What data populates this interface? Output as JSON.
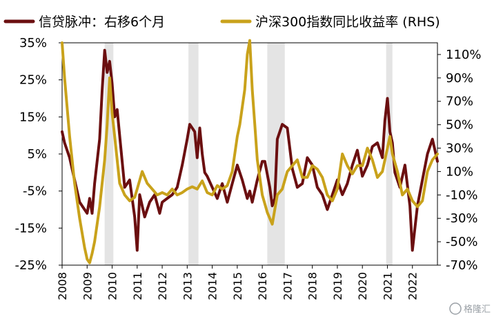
{
  "chart_data": {
    "type": "line",
    "title": "",
    "xlabel": "",
    "ylabel": "",
    "x_range": [
      2008.0,
      2023.0
    ],
    "x_tick_labels": [
      "2008",
      "2009",
      "2010",
      "2011",
      "2012",
      "2013",
      "2014",
      "2015",
      "2016",
      "2017",
      "2018",
      "2019",
      "2020",
      "2021",
      "2022"
    ],
    "left_axis": {
      "range": [
        -25,
        35
      ],
      "ticks": [
        35,
        25,
        15,
        5,
        -5,
        -15,
        -25
      ],
      "tick_labels": [
        "35%",
        "25%",
        "15%",
        "5%",
        "-5%",
        "-15%",
        "-25%"
      ]
    },
    "right_axis": {
      "range": [
        -70,
        120
      ],
      "ticks": [
        110,
        90,
        70,
        50,
        30,
        10,
        -10,
        -30,
        -50,
        -70
      ],
      "tick_labels": [
        "110%",
        "90%",
        "70%",
        "50%",
        "30%",
        "10%",
        "-10%",
        "-30%",
        "-50%",
        "-70%"
      ]
    },
    "shaded_periods": [
      [
        2009.7,
        2010.05
      ],
      [
        2013.05,
        2013.45
      ],
      [
        2016.2,
        2016.9
      ],
      [
        2020.95,
        2021.2
      ]
    ],
    "legend_position": "top",
    "grid": false,
    "series": [
      {
        "name": "信贷脉冲：右移6个月",
        "axis": "left",
        "color": "#6b0f10",
        "x": [
          2008.0,
          2008.1,
          2008.3,
          2008.5,
          2008.7,
          2008.9,
          2009.0,
          2009.1,
          2009.2,
          2009.3,
          2009.5,
          2009.6,
          2009.7,
          2009.8,
          2009.9,
          2010.0,
          2010.1,
          2010.2,
          2010.3,
          2010.5,
          2010.7,
          2010.9,
          2011.0,
          2011.1,
          2011.3,
          2011.5,
          2011.7,
          2011.9,
          2012.0,
          2012.2,
          2012.4,
          2012.6,
          2012.8,
          2013.0,
          2013.1,
          2013.3,
          2013.4,
          2013.5,
          2013.6,
          2013.7,
          2013.8,
          2014.0,
          2014.2,
          2014.4,
          2014.6,
          2014.8,
          2015.0,
          2015.2,
          2015.4,
          2015.5,
          2015.6,
          2015.8,
          2016.0,
          2016.1,
          2016.3,
          2016.4,
          2016.5,
          2016.6,
          2016.8,
          2017.0,
          2017.2,
          2017.4,
          2017.6,
          2017.8,
          2018.0,
          2018.2,
          2018.4,
          2018.6,
          2018.8,
          2019.0,
          2019.2,
          2019.4,
          2019.6,
          2019.8,
          2020.0,
          2020.2,
          2020.4,
          2020.6,
          2020.8,
          2020.9,
          2021.0,
          2021.1,
          2021.2,
          2021.3,
          2021.5,
          2021.7,
          2021.9,
          2022.0,
          2022.2,
          2022.4,
          2022.6,
          2022.8,
          2022.9,
          2023.0
        ],
        "values": [
          11,
          8,
          4,
          -2,
          -8,
          -10,
          -11,
          -7,
          -11,
          -3,
          9,
          22,
          33,
          27,
          30,
          24,
          15,
          17,
          10,
          -4,
          -2,
          -12,
          -21,
          -6,
          -12,
          -8,
          -6,
          -11,
          -8,
          -7,
          -6,
          -4,
          2,
          9,
          13,
          11,
          4,
          12,
          5,
          0,
          -1,
          -4,
          -7,
          -3,
          -8,
          -3,
          2,
          -2,
          -7,
          -5,
          -8,
          -2,
          3,
          3,
          -4,
          -9,
          -7,
          9,
          13,
          12,
          1,
          -4,
          -3,
          4,
          2,
          -4,
          -6,
          -10,
          -6,
          -2,
          -6,
          -3,
          2,
          6,
          -1,
          2,
          7,
          8,
          4,
          14,
          20,
          11,
          8,
          0,
          -4,
          2,
          -9,
          -21,
          -9,
          -2,
          5,
          9,
          6,
          3
        ]
      },
      {
        "name": "沪深300指数同比收益率 (RHS)",
        "axis": "right",
        "color": "#c9a21b",
        "x": [
          2008.0,
          2008.1,
          2008.3,
          2008.5,
          2008.7,
          2008.9,
          2009.0,
          2009.1,
          2009.2,
          2009.3,
          2009.5,
          2009.7,
          2009.8,
          2009.9,
          2010.0,
          2010.1,
          2010.3,
          2010.5,
          2010.7,
          2010.9,
          2011.0,
          2011.2,
          2011.4,
          2011.6,
          2011.8,
          2012.0,
          2012.2,
          2012.4,
          2012.6,
          2012.8,
          2013.0,
          2013.2,
          2013.4,
          2013.6,
          2013.8,
          2014.0,
          2014.2,
          2014.4,
          2014.6,
          2014.8,
          2015.0,
          2015.1,
          2015.3,
          2015.4,
          2015.5,
          2015.6,
          2015.7,
          2015.8,
          2016.0,
          2016.2,
          2016.4,
          2016.6,
          2016.8,
          2017.0,
          2017.2,
          2017.4,
          2017.6,
          2017.8,
          2018.0,
          2018.2,
          2018.4,
          2018.6,
          2018.8,
          2019.0,
          2019.2,
          2019.4,
          2019.6,
          2019.8,
          2020.0,
          2020.2,
          2020.4,
          2020.6,
          2020.8,
          2021.0,
          2021.1,
          2021.2,
          2021.4,
          2021.6,
          2021.8,
          2022.0,
          2022.2,
          2022.4,
          2022.6,
          2022.8,
          2023.0
        ],
        "values": [
          120,
          90,
          40,
          0,
          -30,
          -55,
          -65,
          -68,
          -60,
          -50,
          -20,
          20,
          50,
          90,
          60,
          40,
          0,
          -10,
          -15,
          -12,
          -5,
          10,
          0,
          -5,
          -10,
          -8,
          -10,
          -5,
          -10,
          -8,
          -5,
          -3,
          -5,
          2,
          -8,
          -10,
          -2,
          -5,
          -2,
          10,
          40,
          50,
          80,
          110,
          122,
          80,
          50,
          20,
          -10,
          -25,
          -35,
          -10,
          -5,
          10,
          15,
          20,
          5,
          5,
          15,
          12,
          5,
          -10,
          -15,
          -5,
          25,
          15,
          8,
          15,
          15,
          30,
          20,
          5,
          10,
          30,
          40,
          25,
          10,
          -10,
          -5,
          -15,
          -20,
          -15,
          10,
          20,
          25
        ]
      }
    ],
    "watermark": "格隆汇"
  }
}
